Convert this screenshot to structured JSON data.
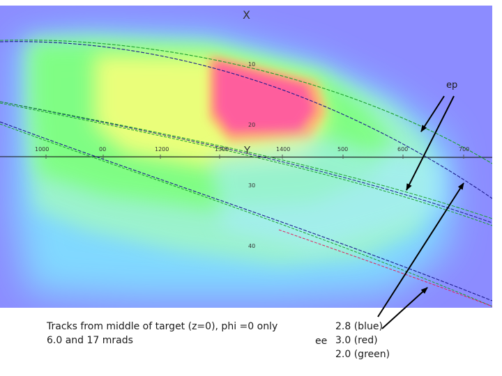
{
  "diagram": {
    "axis_x_name": "X",
    "axis_y_name": "Y",
    "horizontal_ticks": [
      "1000",
      "00",
      "1200",
      "1300",
      "1400",
      "500",
      "600",
      "700"
    ],
    "vertical_ticks": [
      "10",
      "20",
      "30",
      "40"
    ],
    "ep_label": "ep",
    "colors": {
      "background": "#8c8cff",
      "hot_core": "#ff5aa0",
      "track_blue": "#1a1a8c",
      "track_red": "#e0205a",
      "track_green": "#1aa02a",
      "arrow": "#000000"
    }
  },
  "caption": {
    "line1": "Tracks from middle of target (z=0), phi =0 only",
    "line2": "6.0 and 17 mrads"
  },
  "legend": {
    "prefix": "ee",
    "blue": "2.8 (blue)",
    "red": "3.0 (red)",
    "green": "2.0 (green)"
  }
}
